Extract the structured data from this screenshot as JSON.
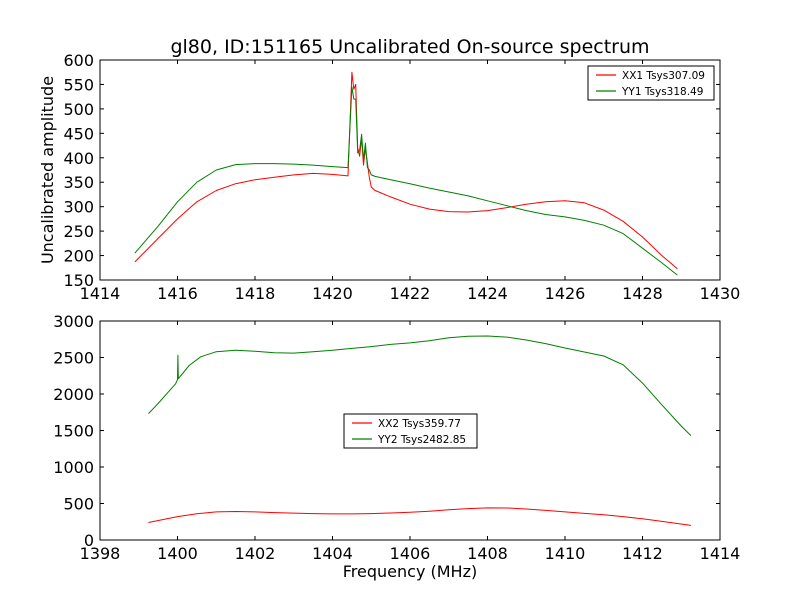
{
  "chart_data": [
    {
      "type": "line",
      "title": "gl80, ID:151165 Uncalibrated On-source spectrum",
      "xlabel": "",
      "ylabel": "Uncalibrated amplitude",
      "xlim": [
        1414,
        1430
      ],
      "ylim": [
        150,
        600
      ],
      "xticks": [
        "1414",
        "1416",
        "1418",
        "1420",
        "1422",
        "1424",
        "1426",
        "1428",
        "1430"
      ],
      "yticks": [
        "150",
        "200",
        "250",
        "300",
        "350",
        "400",
        "450",
        "500",
        "550",
        "600"
      ],
      "legend_position": "top-right",
      "series": [
        {
          "name": "XX1 Tsys307.09",
          "color": "#ff0000",
          "x": [
            1414.9,
            1415.5,
            1416.0,
            1416.5,
            1417.0,
            1417.5,
            1418.0,
            1418.5,
            1419.0,
            1419.5,
            1420.0,
            1420.4,
            1420.5,
            1420.55,
            1420.6,
            1420.65,
            1420.7,
            1420.75,
            1420.8,
            1420.85,
            1420.9,
            1420.95,
            1421.0,
            1421.1,
            1421.5,
            1422.0,
            1422.5,
            1423.0,
            1423.5,
            1424.0,
            1424.5,
            1425.0,
            1425.5,
            1426.0,
            1426.5,
            1427.0,
            1427.5,
            1428.0,
            1428.5,
            1428.9
          ],
          "values": [
            187,
            235,
            275,
            310,
            333,
            347,
            355,
            360,
            365,
            368,
            366,
            363,
            575,
            540,
            550,
            420,
            403,
            440,
            385,
            420,
            390,
            360,
            340,
            333,
            320,
            305,
            295,
            290,
            289,
            292,
            298,
            305,
            310,
            312,
            308,
            293,
            270,
            238,
            200,
            173
          ]
        },
        {
          "name": "YY1 Tsys318.49",
          "color": "#008000",
          "x": [
            1414.9,
            1415.5,
            1416.0,
            1416.5,
            1417.0,
            1417.5,
            1418.0,
            1418.5,
            1419.0,
            1419.5,
            1420.0,
            1420.4,
            1420.5,
            1420.55,
            1420.6,
            1420.65,
            1420.7,
            1420.75,
            1420.8,
            1420.85,
            1420.9,
            1420.95,
            1421.0,
            1421.1,
            1421.5,
            1422.0,
            1422.5,
            1423.0,
            1423.5,
            1424.0,
            1424.5,
            1425.0,
            1425.5,
            1426.0,
            1426.5,
            1427.0,
            1427.5,
            1428.0,
            1428.5,
            1428.9
          ],
          "values": [
            205,
            260,
            310,
            350,
            375,
            386,
            388,
            388,
            387,
            385,
            382,
            380,
            545,
            520,
            520,
            410,
            415,
            448,
            395,
            430,
            380,
            375,
            365,
            362,
            355,
            347,
            338,
            330,
            322,
            312,
            302,
            292,
            284,
            279,
            272,
            262,
            245,
            215,
            185,
            160
          ]
        }
      ]
    },
    {
      "type": "line",
      "title": "",
      "xlabel": "Frequency (MHz)",
      "ylabel": "",
      "xlim": [
        1398,
        1414
      ],
      "ylim": [
        0,
        3000
      ],
      "xticks": [
        "1398",
        "1400",
        "1402",
        "1404",
        "1406",
        "1408",
        "1410",
        "1412",
        "1414"
      ],
      "yticks": [
        "0",
        "500",
        "1000",
        "1500",
        "2000",
        "2500",
        "3000"
      ],
      "legend_position": "center",
      "series": [
        {
          "name": "XX2 Tsys359.77",
          "color": "#ff0000",
          "x": [
            1399.25,
            1400.0,
            1400.5,
            1401.0,
            1401.5,
            1402.0,
            1402.5,
            1403.0,
            1403.5,
            1404.0,
            1404.5,
            1405.0,
            1405.5,
            1406.0,
            1406.5,
            1407.0,
            1407.5,
            1408.0,
            1408.5,
            1409.0,
            1409.5,
            1410.0,
            1410.5,
            1411.0,
            1411.5,
            1412.0,
            1412.5,
            1413.25
          ],
          "values": [
            240,
            320,
            360,
            385,
            390,
            385,
            375,
            368,
            362,
            358,
            358,
            362,
            370,
            380,
            395,
            415,
            430,
            440,
            438,
            425,
            405,
            385,
            365,
            345,
            320,
            290,
            255,
            200
          ]
        },
        {
          "name": "YY2 Tsys2482.85",
          "color": "#008000",
          "x": [
            1399.25,
            1399.5,
            1399.8,
            1399.95,
            1400.0,
            1400.01,
            1400.02,
            1400.1,
            1400.3,
            1400.6,
            1401.0,
            1401.5,
            1402.0,
            1402.5,
            1403.0,
            1403.5,
            1404.0,
            1404.5,
            1405.0,
            1405.5,
            1406.0,
            1406.5,
            1407.0,
            1407.5,
            1408.0,
            1408.5,
            1409.0,
            1409.5,
            1410.0,
            1410.5,
            1411.0,
            1411.5,
            1412.0,
            1412.5,
            1413.0,
            1413.25
          ],
          "values": [
            1730,
            1870,
            2050,
            2140,
            2200,
            2530,
            2210,
            2260,
            2390,
            2510,
            2580,
            2600,
            2585,
            2565,
            2560,
            2580,
            2600,
            2625,
            2650,
            2680,
            2700,
            2730,
            2770,
            2790,
            2795,
            2780,
            2740,
            2690,
            2630,
            2575,
            2520,
            2400,
            2150,
            1850,
            1560,
            1430
          ]
        }
      ]
    }
  ]
}
